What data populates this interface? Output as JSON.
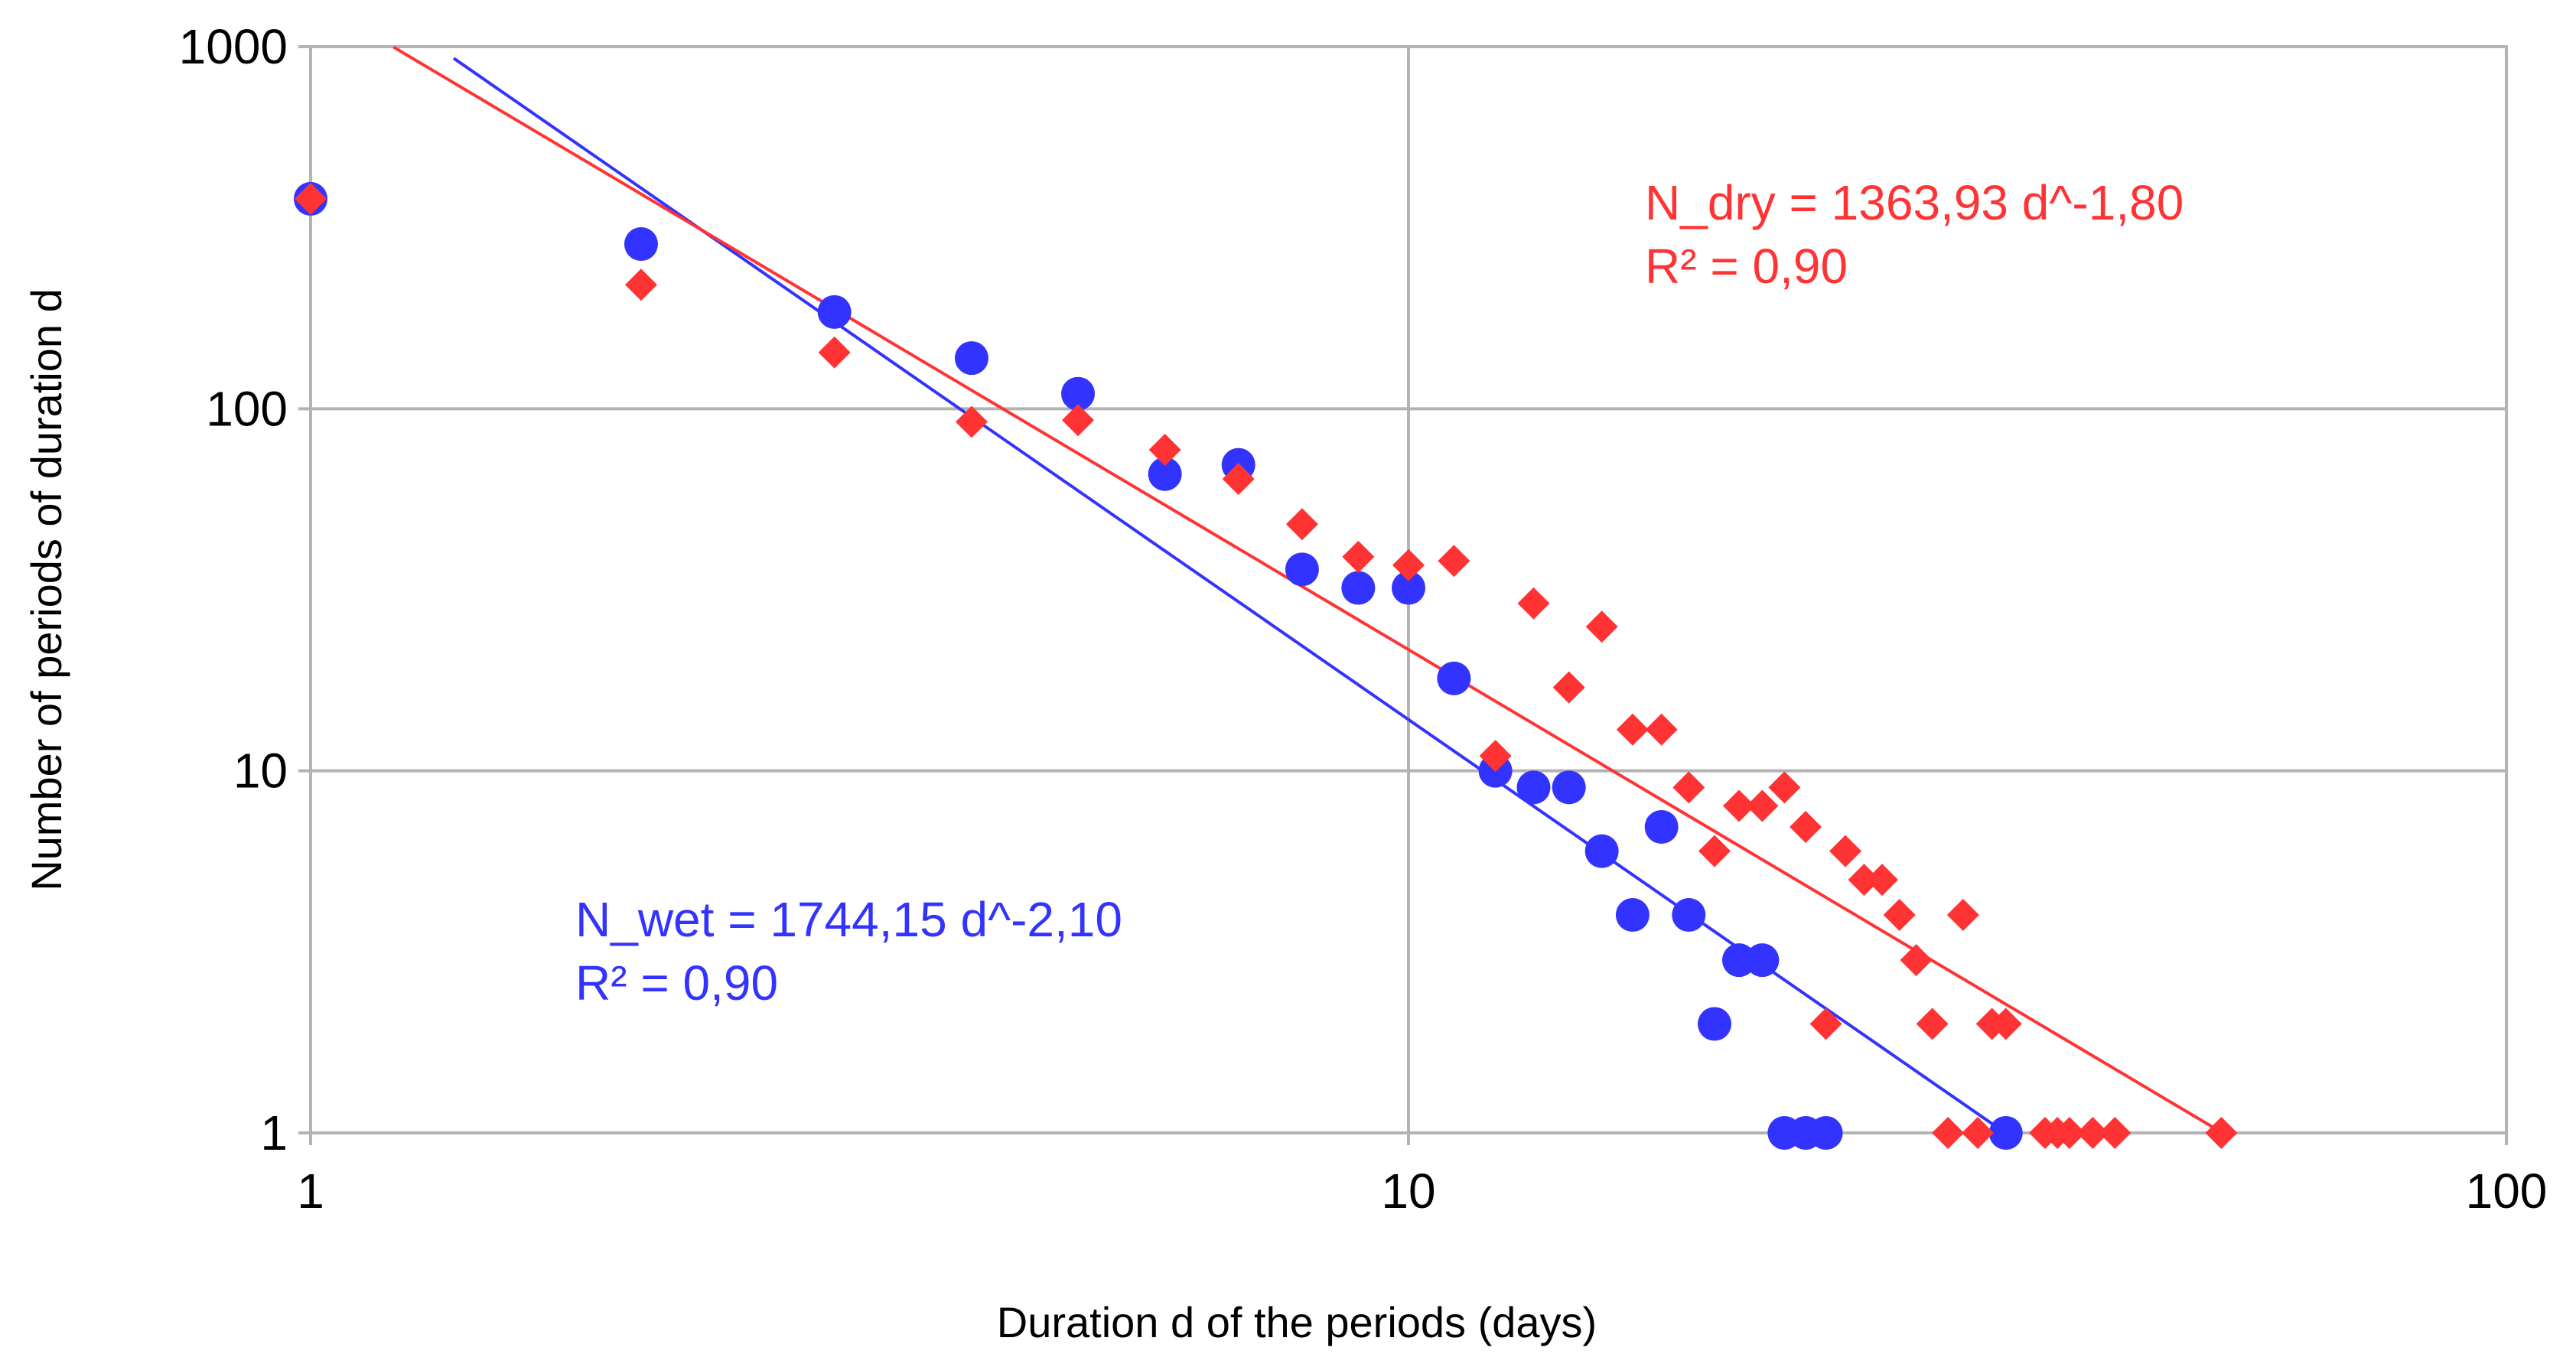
{
  "chart_data": {
    "type": "scatter",
    "title": "",
    "xlabel": "Duration d of the periods (days)",
    "ylabel": "Number of periods of duration d",
    "xscale": "log",
    "yscale": "log",
    "xlim": [
      1,
      100
    ],
    "ylim": [
      1,
      1000
    ],
    "grid": true,
    "x_ticks": [
      {
        "value": 1,
        "label": "1"
      },
      {
        "value": 10,
        "label": "10"
      },
      {
        "value": 100,
        "label": "100"
      }
    ],
    "y_ticks": [
      {
        "value": 1,
        "label": "1"
      },
      {
        "value": 10,
        "label": "10"
      },
      {
        "value": 100,
        "label": "100"
      },
      {
        "value": 1000,
        "label": "1000"
      }
    ],
    "series": [
      {
        "key": "wet",
        "color": "#3333ff",
        "marker": "circle",
        "points": [
          [
            1,
            380
          ],
          [
            2,
            285
          ],
          [
            3,
            185
          ],
          [
            4,
            138
          ],
          [
            5,
            110
          ],
          [
            6,
            66
          ],
          [
            7,
            70
          ],
          [
            8,
            36
          ],
          [
            9,
            32
          ],
          [
            10,
            32
          ],
          [
            11,
            18
          ],
          [
            12,
            10
          ],
          [
            13,
            9
          ],
          [
            14,
            9
          ],
          [
            15,
            6
          ],
          [
            16,
            4
          ],
          [
            17,
            7
          ],
          [
            18,
            4
          ],
          [
            19,
            2
          ],
          [
            20,
            3
          ],
          [
            21,
            3
          ],
          [
            22,
            1
          ],
          [
            23,
            1
          ],
          [
            24,
            1
          ],
          [
            35,
            1
          ]
        ],
        "trendline": {
          "coefficient": 1744.15,
          "exponent": -2.1,
          "x_range": [
            1.35,
            35
          ],
          "equation_label": "N_wet = 1744,15 d^-2,10",
          "r2_label": "R² = 0,90"
        }
      },
      {
        "key": "dry",
        "color": "#ff3333",
        "marker": "diamond",
        "points": [
          [
            1,
            380
          ],
          [
            2,
            220
          ],
          [
            3,
            143
          ],
          [
            4,
            92
          ],
          [
            5,
            93
          ],
          [
            6,
            77
          ],
          [
            7,
            64
          ],
          [
            8,
            48
          ],
          [
            9,
            39
          ],
          [
            10,
            37
          ],
          [
            11,
            38
          ],
          [
            12,
            11
          ],
          [
            13,
            29
          ],
          [
            14,
            17
          ],
          [
            15,
            25
          ],
          [
            16,
            13
          ],
          [
            17,
            13
          ],
          [
            18,
            9
          ],
          [
            19,
            6
          ],
          [
            20,
            8
          ],
          [
            21,
            8
          ],
          [
            22,
            9
          ],
          [
            23,
            7
          ],
          [
            24,
            2
          ],
          [
            25,
            6
          ],
          [
            26,
            5
          ],
          [
            27,
            5
          ],
          [
            28,
            4
          ],
          [
            29,
            3
          ],
          [
            30,
            2
          ],
          [
            31,
            1
          ],
          [
            32,
            4
          ],
          [
            33,
            1
          ],
          [
            34,
            2
          ],
          [
            35,
            2
          ],
          [
            38,
            1
          ],
          [
            39,
            1
          ],
          [
            40,
            1
          ],
          [
            42,
            1
          ],
          [
            44,
            1
          ],
          [
            55,
            1
          ]
        ],
        "trendline": {
          "coefficient": 1363.93,
          "exponent": -1.8,
          "x_range": [
            1.19,
            55
          ],
          "equation_label": "N_dry = 1363,93 d^-1,80",
          "r2_label": "R² = 0,90"
        }
      }
    ]
  }
}
